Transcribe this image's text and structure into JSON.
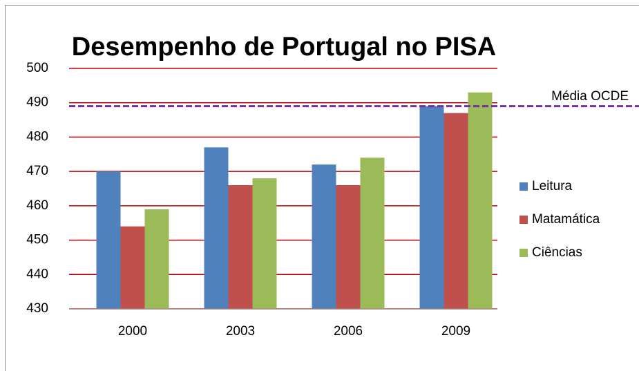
{
  "chart_data": {
    "type": "bar",
    "title": "Desempenho de Portugal no PISA",
    "categories": [
      "2000",
      "2003",
      "2006",
      "2009"
    ],
    "series": [
      {
        "name": "Leitura",
        "color": "#4f81bd",
        "values": [
          470,
          477,
          472,
          489
        ]
      },
      {
        "name": "Matamática",
        "color": "#c0504d",
        "values": [
          454,
          466,
          466,
          487
        ]
      },
      {
        "name": "Ciências",
        "color": "#9bbb59",
        "values": [
          459,
          468,
          474,
          493
        ]
      }
    ],
    "ylim": [
      430,
      500
    ],
    "yticks": [
      430,
      440,
      450,
      460,
      470,
      480,
      490,
      500
    ],
    "grid": true,
    "grid_color": "#c00000",
    "legend": "right",
    "reference_line": {
      "label": "Média OCDE",
      "value": 489,
      "color": "#7030a0"
    }
  }
}
